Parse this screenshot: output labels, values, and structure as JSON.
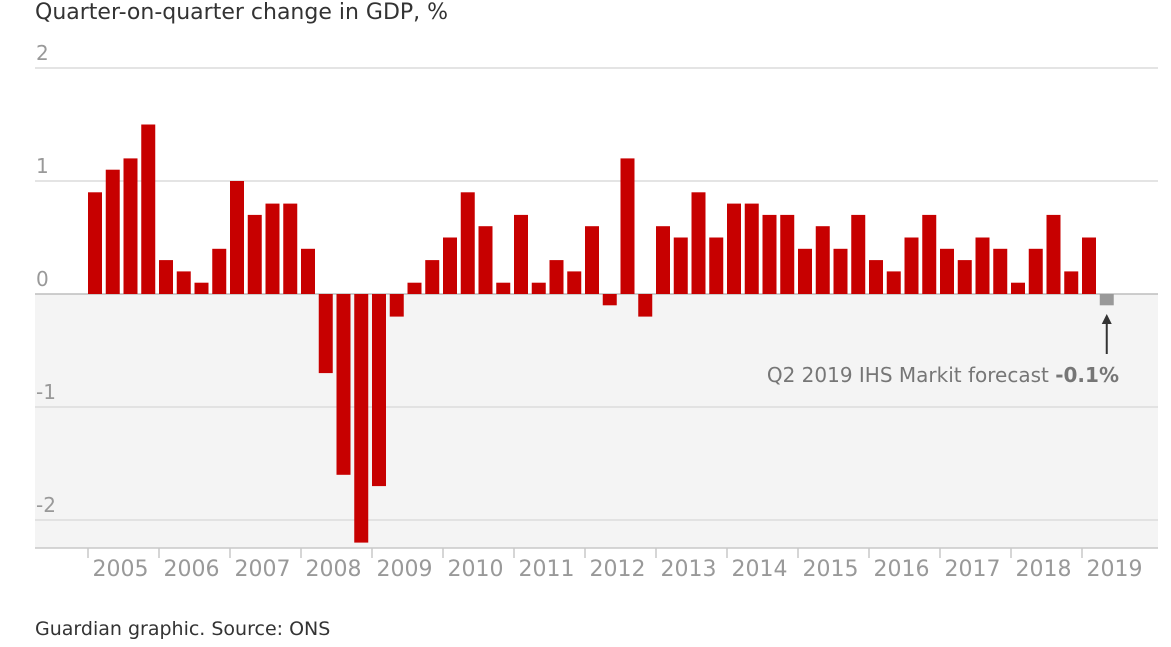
{
  "title": "Quarter-on-quarter change in GDP, %",
  "source": "Guardian graphic. Source: ONS",
  "chart_data": {
    "type": "bar",
    "title": "Quarter-on-quarter change in GDP, %",
    "xlabel": "",
    "ylabel": "",
    "ylim": [
      -2.25,
      2
    ],
    "yticks": [
      2,
      1,
      0,
      -1,
      -2
    ],
    "ytick_labels": [
      "2",
      "1",
      "0",
      "-1",
      "-2"
    ],
    "years": [
      "2005",
      "2006",
      "2007",
      "2008",
      "2009",
      "2010",
      "2011",
      "2012",
      "2013",
      "2014",
      "2015",
      "2016",
      "2017",
      "2018",
      "2019"
    ],
    "series": [
      {
        "name": "Quarter-on-quarter GDP change",
        "color": "#c70000",
        "values": [
          0.9,
          1.1,
          1.2,
          1.5,
          0.3,
          0.2,
          0.1,
          0.4,
          1.0,
          0.7,
          0.8,
          0.8,
          0.4,
          -0.7,
          -1.6,
          -2.2,
          -1.7,
          -0.2,
          0.1,
          0.3,
          0.5,
          0.9,
          0.6,
          0.1,
          0.7,
          0.1,
          0.3,
          0.2,
          0.6,
          -0.1,
          1.2,
          -0.2,
          0.6,
          0.5,
          0.9,
          0.5,
          0.8,
          0.8,
          0.7,
          0.7,
          0.4,
          0.6,
          0.4,
          0.7,
          0.3,
          0.2,
          0.5,
          0.7,
          0.4,
          0.3,
          0.5,
          0.4,
          0.1,
          0.4,
          0.7,
          0.2,
          0.5
        ]
      },
      {
        "name": "Q2 2019 IHS Markit forecast",
        "color": "#999999",
        "values": [
          -0.1
        ]
      }
    ],
    "annotation": {
      "label": "Q2 2019 IHS Markit forecast ",
      "value": "-0.1%"
    }
  },
  "colors": {
    "bar": "#c70000",
    "forecast": "#999999",
    "negative_band": "#f4f4f4",
    "grid": "#dcdcdc"
  }
}
